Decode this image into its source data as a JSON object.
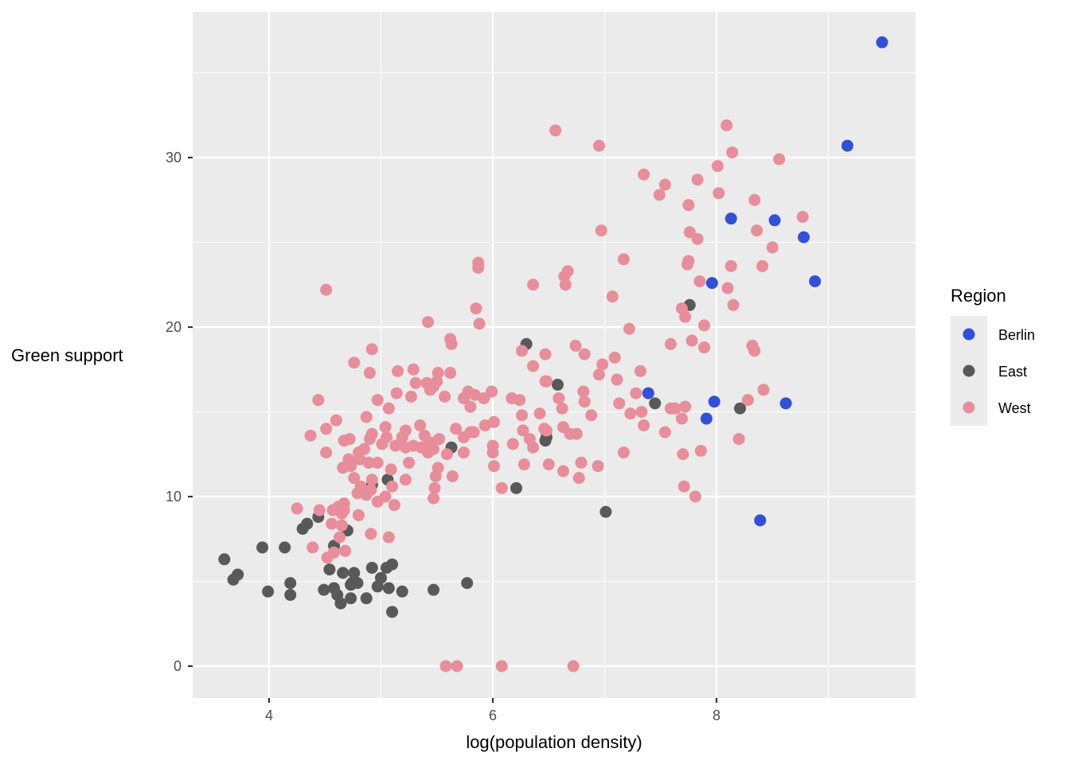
{
  "chart_data": {
    "type": "scatter",
    "title": "",
    "xlabel": "log(population density)",
    "ylabel": "Green support",
    "xlim": [
      3.4,
      9.9
    ],
    "ylim": [
      -1.8,
      38.5
    ],
    "xticks": [
      4,
      6,
      8
    ],
    "yticks": [
      0,
      10,
      20,
      30
    ],
    "grid": true,
    "legend": {
      "title": "Region",
      "position": "right"
    },
    "series": [
      {
        "name": "Berlin",
        "color": "#3150d8",
        "points": [
          [
            9.48,
            36.8
          ],
          [
            9.17,
            30.7
          ],
          [
            8.13,
            26.4
          ],
          [
            8.52,
            26.3
          ],
          [
            8.78,
            25.3
          ],
          [
            8.88,
            22.7
          ],
          [
            7.96,
            22.6
          ],
          [
            7.39,
            16.1
          ],
          [
            7.98,
            15.6
          ],
          [
            8.62,
            15.5
          ],
          [
            7.91,
            14.6
          ],
          [
            8.39,
            8.6
          ]
        ]
      },
      {
        "name": "East",
        "color": "#595959",
        "points": [
          [
            3.6,
            6.3
          ],
          [
            3.68,
            5.1
          ],
          [
            3.72,
            5.4
          ],
          [
            3.94,
            7.0
          ],
          [
            3.99,
            4.4
          ],
          [
            4.14,
            7.0
          ],
          [
            4.19,
            4.9
          ],
          [
            4.19,
            4.2
          ],
          [
            4.3,
            8.1
          ],
          [
            4.34,
            8.4
          ],
          [
            4.44,
            8.8
          ],
          [
            4.49,
            4.5
          ],
          [
            4.54,
            5.7
          ],
          [
            4.58,
            4.6
          ],
          [
            4.58,
            7.1
          ],
          [
            4.61,
            4.2
          ],
          [
            4.64,
            3.7
          ],
          [
            4.66,
            5.5
          ],
          [
            4.7,
            8.0
          ],
          [
            4.73,
            4.8
          ],
          [
            4.73,
            4.0
          ],
          [
            4.74,
            4.9
          ],
          [
            4.76,
            5.5
          ],
          [
            4.79,
            4.9
          ],
          [
            4.87,
            4.0
          ],
          [
            4.92,
            10.7
          ],
          [
            4.92,
            5.8
          ],
          [
            4.97,
            4.7
          ],
          [
            5.0,
            5.2
          ],
          [
            5.05,
            5.8
          ],
          [
            5.06,
            11.0
          ],
          [
            5.07,
            4.6
          ],
          [
            5.1,
            6.0
          ],
          [
            5.1,
            3.2
          ],
          [
            5.19,
            4.4
          ],
          [
            5.47,
            4.5
          ],
          [
            5.63,
            12.9
          ],
          [
            5.77,
            4.9
          ],
          [
            6.21,
            10.5
          ],
          [
            6.3,
            19.0
          ],
          [
            6.47,
            13.3
          ],
          [
            6.48,
            13.5
          ],
          [
            6.58,
            16.6
          ],
          [
            7.01,
            9.1
          ],
          [
            7.45,
            15.5
          ],
          [
            7.76,
            21.3
          ],
          [
            8.21,
            15.2
          ]
        ]
      },
      {
        "name": "West",
        "color": "#e88d9a",
        "points": [
          [
            6.56,
            31.6
          ],
          [
            6.95,
            30.7
          ],
          [
            8.09,
            31.9
          ],
          [
            8.14,
            30.3
          ],
          [
            8.56,
            29.9
          ],
          [
            7.35,
            29.0
          ],
          [
            8.01,
            29.5
          ],
          [
            7.83,
            28.7
          ],
          [
            7.54,
            28.4
          ],
          [
            7.49,
            27.8
          ],
          [
            8.02,
            27.9
          ],
          [
            7.75,
            27.2
          ],
          [
            8.34,
            27.5
          ],
          [
            8.77,
            26.5
          ],
          [
            6.97,
            25.7
          ],
          [
            7.76,
            25.6
          ],
          [
            7.83,
            25.2
          ],
          [
            8.36,
            25.7
          ],
          [
            8.5,
            24.7
          ],
          [
            7.17,
            24.0
          ],
          [
            7.75,
            23.9
          ],
          [
            7.74,
            23.7
          ],
          [
            8.13,
            23.6
          ],
          [
            8.41,
            23.6
          ],
          [
            6.67,
            23.3
          ],
          [
            5.87,
            23.8
          ],
          [
            5.87,
            23.5
          ],
          [
            6.64,
            23.0
          ],
          [
            6.65,
            22.5
          ],
          [
            6.36,
            22.5
          ],
          [
            7.85,
            22.7
          ],
          [
            8.1,
            22.3
          ],
          [
            4.51,
            22.2
          ],
          [
            7.07,
            21.8
          ],
          [
            8.15,
            21.3
          ],
          [
            5.85,
            21.1
          ],
          [
            7.69,
            21.1
          ],
          [
            7.72,
            20.6
          ],
          [
            5.88,
            20.2
          ],
          [
            7.22,
            19.9
          ],
          [
            7.89,
            20.1
          ],
          [
            5.42,
            20.3
          ],
          [
            5.62,
            19.3
          ],
          [
            5.63,
            19.0
          ],
          [
            4.92,
            18.7
          ],
          [
            4.76,
            17.9
          ],
          [
            8.34,
            18.6
          ],
          [
            7.59,
            19.0
          ],
          [
            7.78,
            19.2
          ],
          [
            6.74,
            18.9
          ],
          [
            6.82,
            18.4
          ],
          [
            6.26,
            18.6
          ],
          [
            6.47,
            18.4
          ],
          [
            7.09,
            18.2
          ],
          [
            6.36,
            17.7
          ],
          [
            6.98,
            17.8
          ],
          [
            6.95,
            17.2
          ],
          [
            4.9,
            17.3
          ],
          [
            7.32,
            17.4
          ],
          [
            7.11,
            16.9
          ],
          [
            5.15,
            17.4
          ],
          [
            5.51,
            17.3
          ],
          [
            5.62,
            17.3
          ],
          [
            5.29,
            17.5
          ],
          [
            5.41,
            16.7
          ],
          [
            5.47,
            16.5
          ],
          [
            5.5,
            16.8
          ],
          [
            5.44,
            16.3
          ],
          [
            5.14,
            16.1
          ],
          [
            5.31,
            16.7
          ],
          [
            5.27,
            15.9
          ],
          [
            5.07,
            15.2
          ],
          [
            4.97,
            15.7
          ],
          [
            4.44,
            15.7
          ],
          [
            5.57,
            15.9
          ],
          [
            5.74,
            15.8
          ],
          [
            5.84,
            16.0
          ],
          [
            5.78,
            16.2
          ],
          [
            5.99,
            16.2
          ],
          [
            5.8,
            15.3
          ],
          [
            5.92,
            15.8
          ],
          [
            6.17,
            15.8
          ],
          [
            6.24,
            15.7
          ],
          [
            6.47,
            16.8
          ],
          [
            6.48,
            16.8
          ],
          [
            6.81,
            16.2
          ],
          [
            6.82,
            15.6
          ],
          [
            7.28,
            16.1
          ],
          [
            7.13,
            15.5
          ],
          [
            7.72,
            15.3
          ],
          [
            7.59,
            15.2
          ],
          [
            7.63,
            15.2
          ],
          [
            7.69,
            14.6
          ],
          [
            7.33,
            15.0
          ],
          [
            7.35,
            14.2
          ],
          [
            7.54,
            13.8
          ],
          [
            7.23,
            14.9
          ],
          [
            6.59,
            15.8
          ],
          [
            6.62,
            15.2
          ],
          [
            6.42,
            14.9
          ],
          [
            6.26,
            14.8
          ],
          [
            6.27,
            13.9
          ],
          [
            6.33,
            13.4
          ],
          [
            6.01,
            14.4
          ],
          [
            6.18,
            13.1
          ],
          [
            6.46,
            14.0
          ],
          [
            6.69,
            13.7
          ],
          [
            6.63,
            14.1
          ],
          [
            6.88,
            14.8
          ],
          [
            6.75,
            13.7
          ],
          [
            5.93,
            14.2
          ],
          [
            5.83,
            13.8
          ],
          [
            5.67,
            14.0
          ],
          [
            5.74,
            13.5
          ],
          [
            5.52,
            13.4
          ],
          [
            5.44,
            13.2
          ],
          [
            5.47,
            12.8
          ],
          [
            5.29,
            13.0
          ],
          [
            5.39,
            13.6
          ],
          [
            5.35,
            14.2
          ],
          [
            5.22,
            13.9
          ],
          [
            5.04,
            14.1
          ],
          [
            4.87,
            14.7
          ],
          [
            4.92,
            13.7
          ],
          [
            4.9,
            13.4
          ],
          [
            4.85,
            12.8
          ],
          [
            4.8,
            12.6
          ],
          [
            4.71,
            12.2
          ],
          [
            4.73,
            11.8
          ],
          [
            4.51,
            14.0
          ],
          [
            4.37,
            13.6
          ],
          [
            4.6,
            14.5
          ],
          [
            4.67,
            13.3
          ],
          [
            4.72,
            13.4
          ],
          [
            4.51,
            12.6
          ],
          [
            5.05,
            13.5
          ],
          [
            5.01,
            13.1
          ],
          [
            5.13,
            13.0
          ],
          [
            5.22,
            12.9
          ],
          [
            5.19,
            13.5
          ],
          [
            5.25,
            12.0
          ],
          [
            5.09,
            11.6
          ],
          [
            5.22,
            11.0
          ],
          [
            5.1,
            10.6
          ],
          [
            4.97,
            12.0
          ],
          [
            4.81,
            12.2
          ],
          [
            4.76,
            11.1
          ],
          [
            4.66,
            11.7
          ],
          [
            4.89,
            12.0
          ],
          [
            4.92,
            11.0
          ],
          [
            5.04,
            10.0
          ],
          [
            5.12,
            9.5
          ],
          [
            4.97,
            9.7
          ],
          [
            4.91,
            10.4
          ],
          [
            4.82,
            10.6
          ],
          [
            4.87,
            10.1
          ],
          [
            4.79,
            10.2
          ],
          [
            4.62,
            9.4
          ],
          [
            4.67,
            9.2
          ],
          [
            4.65,
            9.0
          ],
          [
            4.67,
            9.6
          ],
          [
            4.57,
            9.2
          ],
          [
            4.56,
            8.4
          ],
          [
            4.25,
            9.3
          ],
          [
            4.45,
            9.2
          ],
          [
            4.8,
            8.9
          ],
          [
            4.65,
            8.3
          ],
          [
            4.63,
            7.6
          ],
          [
            4.68,
            6.8
          ],
          [
            4.39,
            7.0
          ],
          [
            4.58,
            6.7
          ],
          [
            4.52,
            6.4
          ],
          [
            4.91,
            7.8
          ],
          [
            5.07,
            7.6
          ],
          [
            5.36,
            12.9
          ],
          [
            5.42,
            12.6
          ],
          [
            5.59,
            12.5
          ],
          [
            5.51,
            11.7
          ],
          [
            5.49,
            11.2
          ],
          [
            5.48,
            10.5
          ],
          [
            5.47,
            9.9
          ],
          [
            5.64,
            11.2
          ],
          [
            5.74,
            12.6
          ],
          [
            5.8,
            13.8
          ],
          [
            6.0,
            13.0
          ],
          [
            6.0,
            12.6
          ],
          [
            6.01,
            11.8
          ],
          [
            6.08,
            10.5
          ],
          [
            6.28,
            11.9
          ],
          [
            6.36,
            12.9
          ],
          [
            6.48,
            13.9
          ],
          [
            6.5,
            11.9
          ],
          [
            6.63,
            11.5
          ],
          [
            6.79,
            12.0
          ],
          [
            6.77,
            11.1
          ],
          [
            6.94,
            11.8
          ],
          [
            7.17,
            12.6
          ],
          [
            7.7,
            12.5
          ],
          [
            7.71,
            10.6
          ],
          [
            7.81,
            10.0
          ],
          [
            7.86,
            12.7
          ],
          [
            8.2,
            13.4
          ],
          [
            8.28,
            15.7
          ],
          [
            8.42,
            16.3
          ],
          [
            8.32,
            18.9
          ],
          [
            7.89,
            18.8
          ],
          [
            5.58,
            0.0
          ],
          [
            5.68,
            0.0
          ],
          [
            6.08,
            0.0
          ],
          [
            6.72,
            0.0
          ]
        ]
      }
    ]
  },
  "legend": {
    "title": "Region",
    "items": [
      {
        "label": "Berlin",
        "color": "#3150d8"
      },
      {
        "label": "East",
        "color": "#595959"
      },
      {
        "label": "West",
        "color": "#e88d9a"
      }
    ]
  },
  "axes": {
    "x_title": "log(population density)",
    "y_title": "Green support",
    "x_tick_labels": [
      "4",
      "6",
      "8"
    ],
    "y_tick_labels": [
      "0",
      "10",
      "20",
      "30"
    ]
  }
}
